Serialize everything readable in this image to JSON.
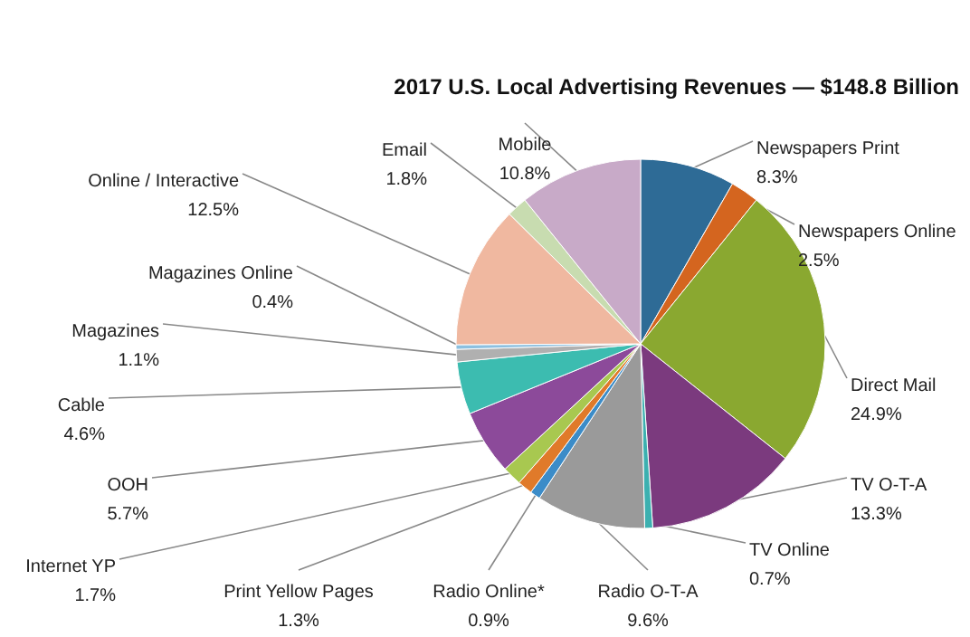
{
  "chart_data": {
    "type": "pie",
    "title": "2017 U.S. Local Advertising Revenues — $148.8 Billion",
    "categories": [
      "Newspapers Print",
      "Newspapers Online",
      "Direct Mail",
      "TV O-T-A",
      "TV Online",
      "Radio O-T-A",
      "Radio Online*",
      "Print Yellow Pages",
      "Internet YP",
      "OOH",
      "Cable",
      "Magazines",
      "Magazines Online",
      "Online / Interactive",
      "Email",
      "Mobile"
    ],
    "values": [
      8.3,
      2.5,
      24.9,
      13.3,
      0.7,
      9.6,
      0.9,
      1.3,
      1.7,
      5.7,
      4.6,
      1.1,
      0.4,
      12.5,
      1.8,
      10.8
    ],
    "value_labels": [
      "8.3%",
      "2.5%",
      "24.9%",
      "13.3%",
      "0.7%",
      "9.6%",
      "0.9%",
      "1.3%",
      "1.7%",
      "5.7%",
      "4.6%",
      "1.1%",
      "0.4%",
      "12.5%",
      "1.8%",
      "10.8%"
    ],
    "colors": [
      "#2e6b96",
      "#d4651f",
      "#8aa830",
      "#7b3a7e",
      "#3cb0b0",
      "#9a9a9a",
      "#3c8cc8",
      "#e07a2a",
      "#a8c850",
      "#8c4a9a",
      "#3cbcb0",
      "#b0b0b0",
      "#8cc0e0",
      "#f0b8a0",
      "#c8dcb0",
      "#c8aac8"
    ]
  }
}
